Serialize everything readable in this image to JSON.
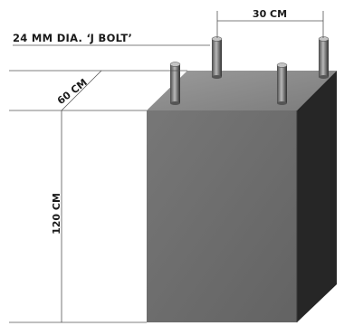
{
  "labels": {
    "bolt_label": "24 MM DIA. ‘J BOLT’",
    "bolt_spacing": "30 CM",
    "depth": "60 CM",
    "height": "120 CM"
  },
  "colors": {
    "front_face": "#6d6d6d",
    "top_face": "#8a8a8a",
    "side_face": "#262626",
    "bolt_light": "#b5b5b5",
    "bolt_dark": "#3a3a3a",
    "text": "#1a1a1a"
  }
}
